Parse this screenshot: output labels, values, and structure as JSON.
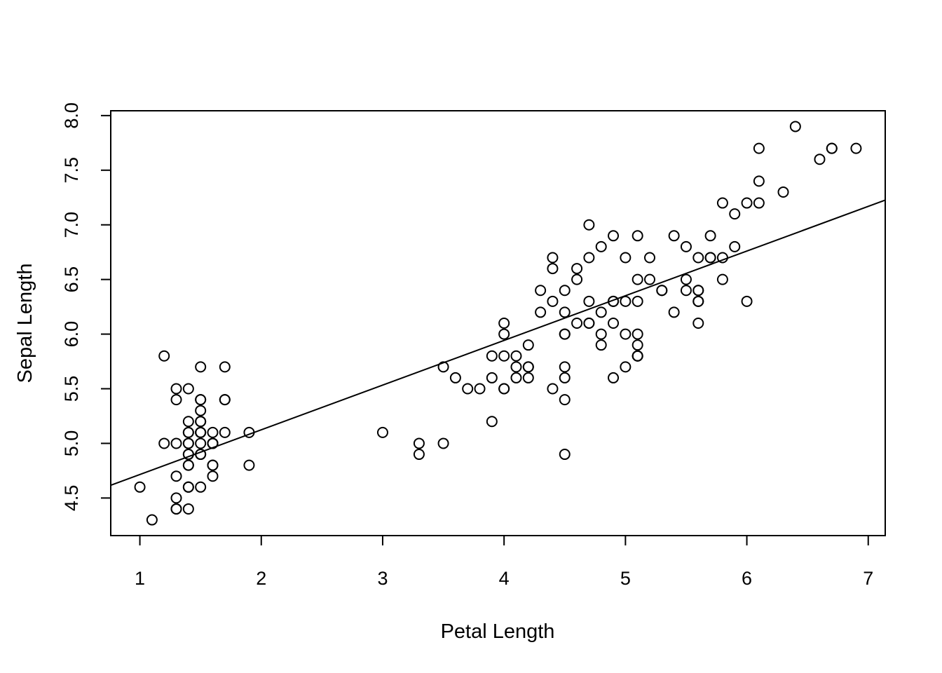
{
  "chart_data": {
    "type": "scatter",
    "title": "",
    "xlabel": "Petal Length",
    "ylabel": "Sepal Length",
    "xlim": [
      0.76,
      7.14
    ],
    "ylim": [
      4.156,
      8.044
    ],
    "x_ticks": [
      1,
      2,
      3,
      4,
      5,
      6,
      7
    ],
    "y_ticks": [
      4.5,
      5.0,
      5.5,
      6.0,
      6.5,
      7.0,
      7.5,
      8.0
    ],
    "x_tick_labels": [
      "1",
      "2",
      "3",
      "4",
      "5",
      "6",
      "7"
    ],
    "y_tick_labels": [
      "4.5",
      "5.0",
      "5.5",
      "6.0",
      "6.5",
      "7.0",
      "7.5",
      "8.0"
    ],
    "grid": false,
    "legend": "none",
    "marker": "open-circle",
    "regression_line": {
      "intercept": 4.306,
      "slope": 0.409
    },
    "points": [
      [
        1.4,
        5.1
      ],
      [
        1.4,
        4.9
      ],
      [
        1.3,
        4.7
      ],
      [
        1.5,
        4.6
      ],
      [
        1.4,
        5.0
      ],
      [
        1.7,
        5.4
      ],
      [
        1.4,
        4.6
      ],
      [
        1.5,
        5.0
      ],
      [
        1.4,
        4.4
      ],
      [
        1.5,
        4.9
      ],
      [
        1.5,
        5.4
      ],
      [
        1.6,
        4.8
      ],
      [
        1.4,
        4.8
      ],
      [
        1.1,
        4.3
      ],
      [
        1.2,
        5.8
      ],
      [
        1.5,
        5.7
      ],
      [
        1.3,
        5.4
      ],
      [
        1.4,
        5.1
      ],
      [
        1.7,
        5.7
      ],
      [
        1.5,
        5.1
      ],
      [
        1.7,
        5.4
      ],
      [
        1.5,
        5.1
      ],
      [
        1.0,
        4.6
      ],
      [
        1.7,
        5.1
      ],
      [
        1.9,
        4.8
      ],
      [
        1.6,
        5.0
      ],
      [
        1.6,
        5.0
      ],
      [
        1.5,
        5.2
      ],
      [
        1.4,
        5.2
      ],
      [
        1.6,
        4.7
      ],
      [
        1.6,
        4.8
      ],
      [
        1.5,
        5.4
      ],
      [
        1.5,
        5.2
      ],
      [
        1.4,
        5.5
      ],
      [
        1.5,
        4.9
      ],
      [
        1.2,
        5.0
      ],
      [
        1.3,
        5.5
      ],
      [
        1.4,
        4.9
      ],
      [
        1.3,
        4.4
      ],
      [
        1.5,
        5.1
      ],
      [
        1.3,
        5.0
      ],
      [
        1.3,
        4.5
      ],
      [
        1.3,
        4.4
      ],
      [
        1.6,
        5.0
      ],
      [
        1.9,
        5.1
      ],
      [
        1.4,
        4.8
      ],
      [
        1.6,
        5.1
      ],
      [
        1.4,
        4.6
      ],
      [
        1.5,
        5.3
      ],
      [
        1.4,
        5.0
      ],
      [
        4.7,
        7.0
      ],
      [
        4.5,
        6.4
      ],
      [
        4.9,
        6.9
      ],
      [
        4.0,
        5.5
      ],
      [
        4.6,
        6.5
      ],
      [
        4.5,
        5.7
      ],
      [
        4.7,
        6.3
      ],
      [
        3.3,
        4.9
      ],
      [
        4.6,
        6.6
      ],
      [
        3.9,
        5.2
      ],
      [
        3.5,
        5.0
      ],
      [
        4.2,
        5.9
      ],
      [
        4.0,
        6.0
      ],
      [
        4.7,
        6.1
      ],
      [
        3.6,
        5.6
      ],
      [
        4.4,
        6.7
      ],
      [
        4.5,
        5.6
      ],
      [
        4.1,
        5.8
      ],
      [
        4.5,
        6.2
      ],
      [
        3.9,
        5.6
      ],
      [
        4.8,
        5.9
      ],
      [
        4.0,
        6.1
      ],
      [
        4.9,
        6.3
      ],
      [
        4.7,
        6.1
      ],
      [
        4.3,
        6.4
      ],
      [
        4.4,
        6.6
      ],
      [
        4.8,
        6.8
      ],
      [
        5.0,
        6.7
      ],
      [
        4.5,
        6.0
      ],
      [
        3.5,
        5.7
      ],
      [
        3.8,
        5.5
      ],
      [
        3.7,
        5.5
      ],
      [
        3.9,
        5.8
      ],
      [
        5.1,
        6.0
      ],
      [
        4.5,
        5.4
      ],
      [
        4.5,
        6.0
      ],
      [
        4.7,
        6.7
      ],
      [
        4.4,
        6.3
      ],
      [
        4.1,
        5.6
      ],
      [
        4.0,
        5.5
      ],
      [
        4.4,
        5.5
      ],
      [
        4.6,
        6.1
      ],
      [
        4.0,
        5.8
      ],
      [
        3.3,
        5.0
      ],
      [
        4.2,
        5.6
      ],
      [
        4.2,
        5.7
      ],
      [
        4.2,
        5.7
      ],
      [
        4.3,
        6.2
      ],
      [
        3.0,
        5.1
      ],
      [
        4.1,
        5.7
      ],
      [
        6.0,
        6.3
      ],
      [
        5.1,
        5.8
      ],
      [
        5.9,
        7.1
      ],
      [
        5.6,
        6.3
      ],
      [
        5.8,
        6.5
      ],
      [
        6.6,
        7.6
      ],
      [
        4.5,
        4.9
      ],
      [
        6.3,
        7.3
      ],
      [
        5.8,
        6.7
      ],
      [
        6.1,
        7.2
      ],
      [
        5.1,
        6.5
      ],
      [
        5.3,
        6.4
      ],
      [
        5.5,
        6.8
      ],
      [
        5.0,
        5.7
      ],
      [
        5.1,
        5.8
      ],
      [
        5.3,
        6.4
      ],
      [
        5.5,
        6.5
      ],
      [
        6.7,
        7.7
      ],
      [
        6.9,
        7.7
      ],
      [
        5.0,
        6.0
      ],
      [
        5.7,
        6.9
      ],
      [
        4.9,
        5.6
      ],
      [
        6.7,
        7.7
      ],
      [
        4.9,
        6.3
      ],
      [
        5.7,
        6.7
      ],
      [
        6.0,
        7.2
      ],
      [
        4.8,
        6.2
      ],
      [
        4.9,
        6.1
      ],
      [
        5.6,
        6.4
      ],
      [
        5.8,
        7.2
      ],
      [
        6.1,
        7.4
      ],
      [
        6.4,
        7.9
      ],
      [
        5.6,
        6.4
      ],
      [
        5.1,
        6.3
      ],
      [
        5.6,
        6.1
      ],
      [
        6.1,
        7.7
      ],
      [
        5.6,
        6.3
      ],
      [
        5.5,
        6.4
      ],
      [
        4.8,
        6.0
      ],
      [
        5.4,
        6.9
      ],
      [
        5.6,
        6.7
      ],
      [
        5.1,
        6.9
      ],
      [
        5.1,
        5.8
      ],
      [
        5.9,
        6.8
      ],
      [
        5.7,
        6.7
      ],
      [
        5.2,
        6.7
      ],
      [
        5.0,
        6.3
      ],
      [
        5.2,
        6.5
      ],
      [
        5.4,
        6.2
      ],
      [
        5.1,
        5.9
      ]
    ]
  }
}
